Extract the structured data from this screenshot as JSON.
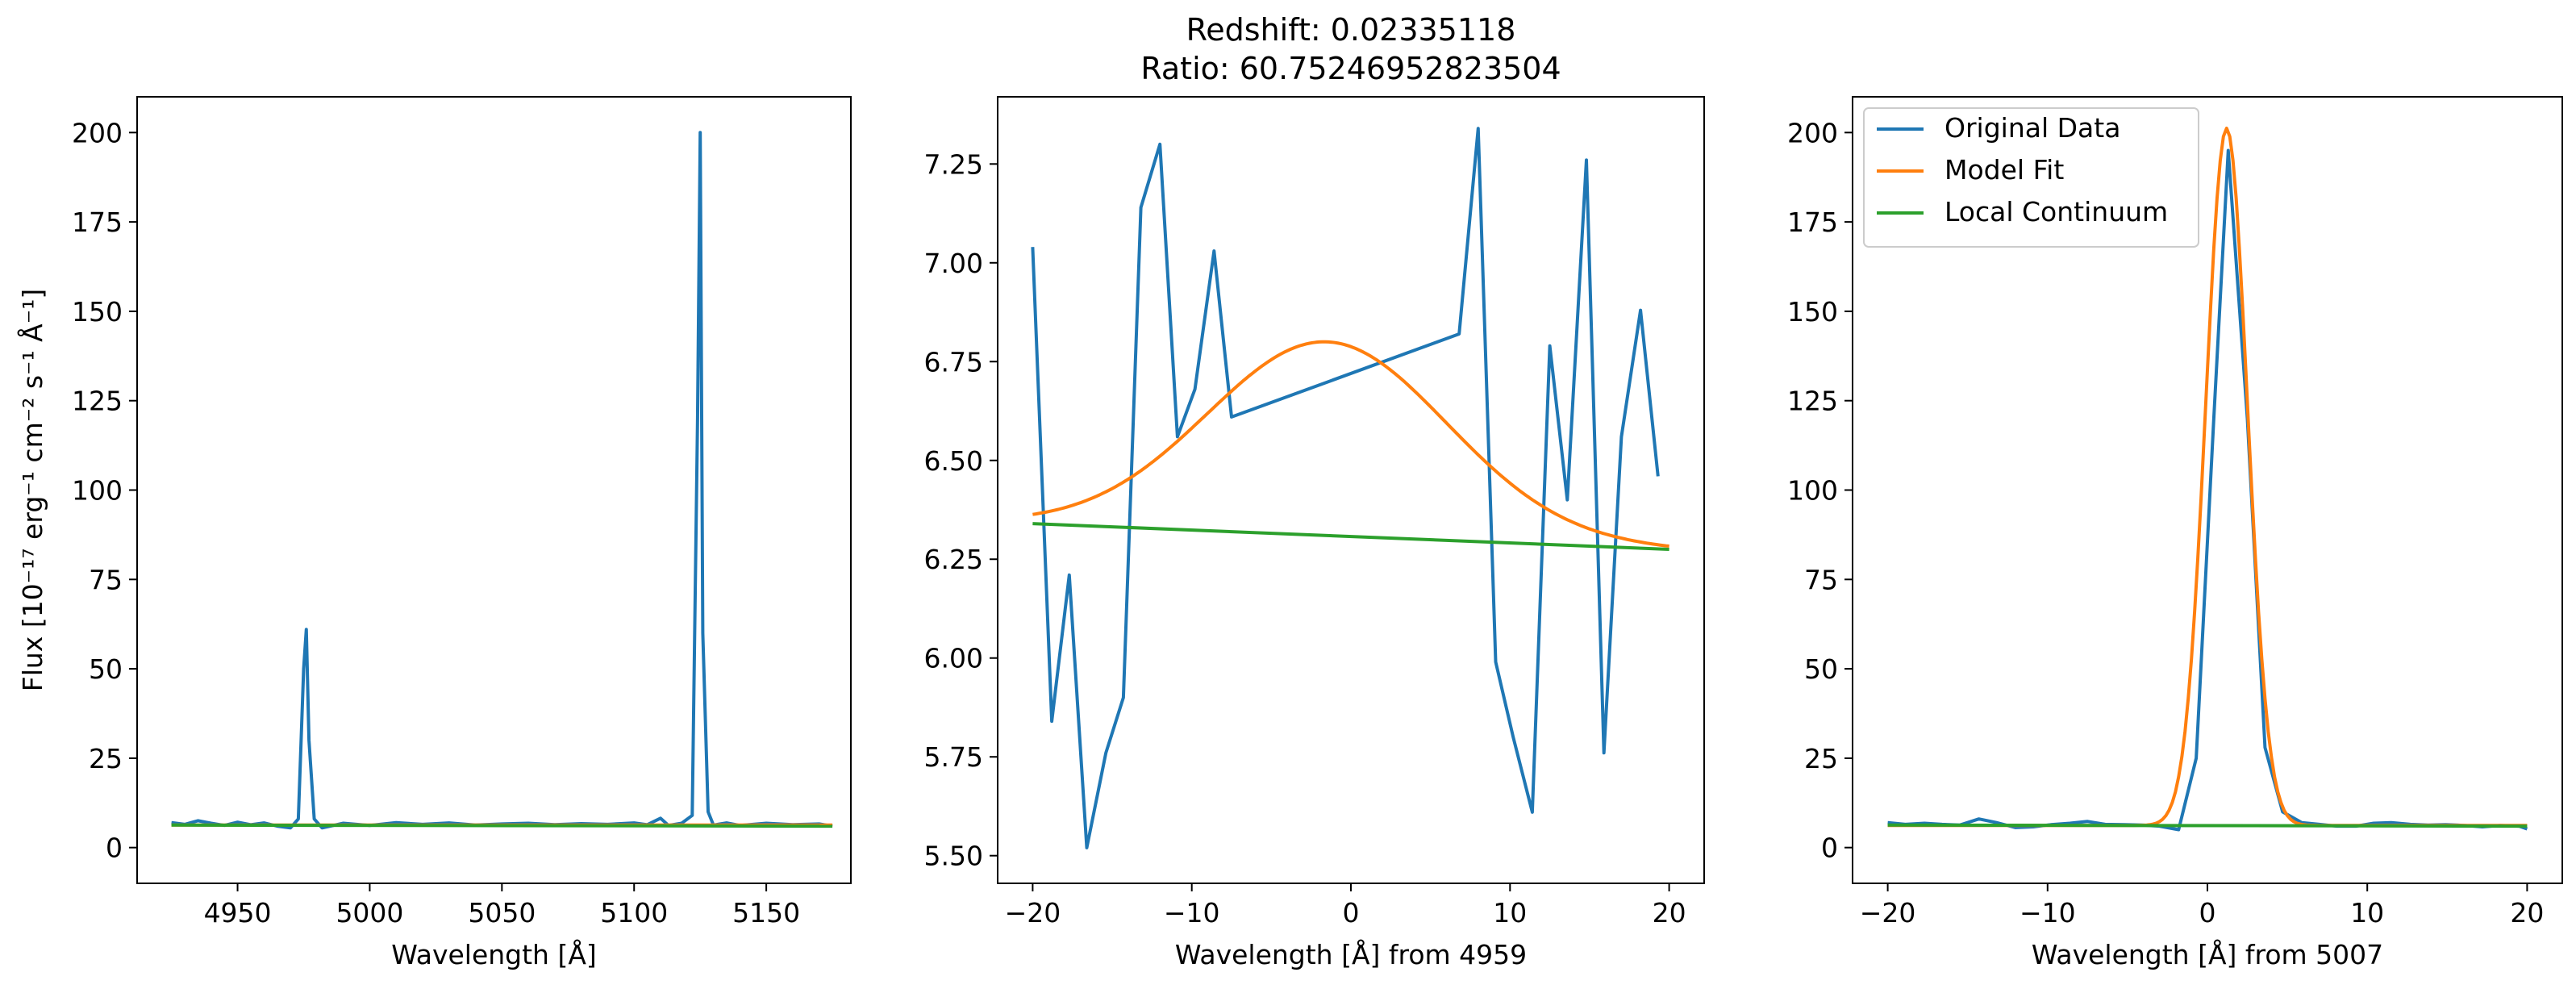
{
  "figure": {
    "title_line1": "Redshift: 0.02335118",
    "title_line2": "Ratio: 60.75246952823504"
  },
  "chart_data": [
    {
      "type": "line",
      "panel": "left",
      "title": "",
      "xlabel": "Wavelength [Å]",
      "ylabel": "Flux [10⁻¹⁷ erg⁻¹ cm⁻² s⁻¹ Å⁻¹]",
      "xlim": [
        4912,
        5182
      ],
      "ylim": [
        -10,
        210
      ],
      "xticks": [
        4950,
        5000,
        5050,
        5100,
        5150
      ],
      "xtick_labels": [
        "4950",
        "5000",
        "5050",
        "5100",
        "5150"
      ],
      "yticks": [
        0,
        25,
        50,
        75,
        100,
        125,
        150,
        175,
        200
      ],
      "ytick_labels": [
        "0",
        "25",
        "50",
        "75",
        "100",
        "125",
        "150",
        "175",
        "200"
      ],
      "series": [
        {
          "name": "Original Data",
          "color": "#1f77b4",
          "x": [
            4925,
            4930,
            4935,
            4940,
            4945,
            4950,
            4955,
            4960,
            4965,
            4970,
            4973,
            4975,
            4976,
            4977,
            4979,
            4982,
            4990,
            5000,
            5010,
            5020,
            5030,
            5040,
            5050,
            5060,
            5070,
            5080,
            5090,
            5100,
            5105,
            5110,
            5113,
            5118,
            5122,
            5124,
            5125,
            5126,
            5128,
            5130,
            5135,
            5140,
            5150,
            5160,
            5170,
            5175
          ],
          "y": [
            7,
            6.5,
            7.5,
            6.8,
            6.2,
            7.1,
            6.4,
            6.9,
            6.0,
            5.5,
            8,
            50,
            61,
            30,
            8,
            5.5,
            6.8,
            6.2,
            7.0,
            6.5,
            6.9,
            6.3,
            6.6,
            6.8,
            6.4,
            6.7,
            6.5,
            6.9,
            6.4,
            8.2,
            6.2,
            6.8,
            9,
            120,
            200,
            60,
            10,
            6.3,
            6.9,
            6.2,
            6.8,
            6.4,
            6.6,
            6.0
          ]
        },
        {
          "name": "Model Fit",
          "color": "#ff7f0e",
          "x": [
            4925,
            5175
          ],
          "y": [
            6.3,
            6.3
          ]
        },
        {
          "name": "Local Continuum",
          "color": "#2ca02c",
          "x": [
            4925,
            5175
          ],
          "y": [
            6.3,
            6.0
          ]
        }
      ]
    },
    {
      "type": "line",
      "panel": "middle",
      "title": "",
      "xlabel": "Wavelength [Å] from 4959",
      "ylabel": "",
      "xlim": [
        -22.2,
        22.2
      ],
      "ylim": [
        5.43,
        7.42
      ],
      "xticks": [
        -20,
        -10,
        0,
        10,
        20
      ],
      "xtick_labels": [
        "−20",
        "−10",
        "0",
        "10",
        "20"
      ],
      "yticks": [
        5.5,
        5.75,
        6.0,
        6.25,
        6.5,
        6.75,
        7.0,
        7.25
      ],
      "ytick_labels": [
        "5.50",
        "5.75",
        "6.00",
        "6.25",
        "6.50",
        "6.75",
        "7.00",
        "7.25"
      ],
      "series": [
        {
          "name": "Original Data",
          "color": "#1f77b4",
          "x": [
            -20.0,
            -18.8,
            -17.7,
            -16.6,
            -15.4,
            -14.3,
            -13.2,
            -12.0,
            -10.9,
            -9.8,
            -8.6,
            -7.5,
            6.8,
            8.0,
            9.1,
            10.2,
            11.4,
            12.5,
            13.6,
            14.8,
            15.9,
            17.0,
            18.2,
            19.3
          ],
          "y": [
            7.04,
            5.84,
            6.21,
            5.52,
            5.76,
            5.9,
            7.14,
            7.3,
            6.56,
            6.68,
            7.03,
            6.61,
            6.82,
            7.34,
            5.99,
            5.8,
            5.61,
            6.79,
            6.4,
            7.26,
            5.76,
            6.56,
            6.88,
            6.46
          ]
        },
        {
          "name": "Model Fit",
          "color": "#ff7f0e",
          "gaussian": {
            "amplitude": 0.49,
            "center": -1.5,
            "sigma": 7.5
          },
          "x_range": [
            -20,
            20
          ]
        },
        {
          "name": "Local Continuum",
          "color": "#2ca02c",
          "x": [
            -20,
            20
          ],
          "y": [
            6.34,
            6.275
          ]
        }
      ]
    },
    {
      "type": "line",
      "panel": "right",
      "title": "",
      "xlabel": "Wavelength [Å] from 5007",
      "ylabel": "",
      "xlim": [
        -22.2,
        22.2
      ],
      "ylim": [
        -10,
        210
      ],
      "xticks": [
        -20,
        -10,
        0,
        10,
        20
      ],
      "xtick_labels": [
        "−20",
        "−10",
        "0",
        "10",
        "20"
      ],
      "yticks": [
        0,
        25,
        50,
        75,
        100,
        125,
        150,
        175,
        200
      ],
      "ytick_labels": [
        "0",
        "25",
        "50",
        "75",
        "100",
        "125",
        "150",
        "175",
        "200"
      ],
      "legend": {
        "position": "top-left",
        "entries": [
          "Original Data",
          "Model Fit",
          "Local Continuum"
        ]
      },
      "series": [
        {
          "name": "Original Data",
          "color": "#1f77b4",
          "x": [
            -20,
            -18.9,
            -17.7,
            -16.6,
            -15.5,
            -14.3,
            -13.2,
            -12.0,
            -10.9,
            -9.8,
            -8.6,
            -7.5,
            -6.4,
            -5.2,
            -4.1,
            -3.0,
            -1.8,
            -0.7,
            0.4,
            1.3,
            2.5,
            3.6,
            4.7,
            5.9,
            7.0,
            8.1,
            9.3,
            10.4,
            11.5,
            12.7,
            13.8,
            14.9,
            16.1,
            17.2,
            18.3,
            19.5,
            20
          ],
          "y": [
            7,
            6.5,
            6.8,
            6.5,
            6.3,
            8.0,
            7.0,
            5.6,
            5.8,
            6.4,
            6.8,
            7.3,
            6.5,
            6.4,
            6.3,
            6.0,
            5.0,
            25,
            120,
            195,
            120,
            28,
            10,
            7.0,
            6.5,
            6.0,
            6.0,
            6.8,
            7.0,
            6.5,
            6.3,
            6.4,
            6.2,
            5.8,
            6.2,
            6.0,
            5.2
          ]
        },
        {
          "name": "Model Fit",
          "color": "#ff7f0e",
          "gaussian": {
            "amplitude": 195,
            "center": 1.2,
            "sigma": 1.3,
            "baseline": 6.2
          },
          "x_range": [
            -20,
            20
          ]
        },
        {
          "name": "Local Continuum",
          "color": "#2ca02c",
          "x": [
            -20,
            20
          ],
          "y": [
            6.3,
            6.0
          ]
        }
      ]
    }
  ]
}
